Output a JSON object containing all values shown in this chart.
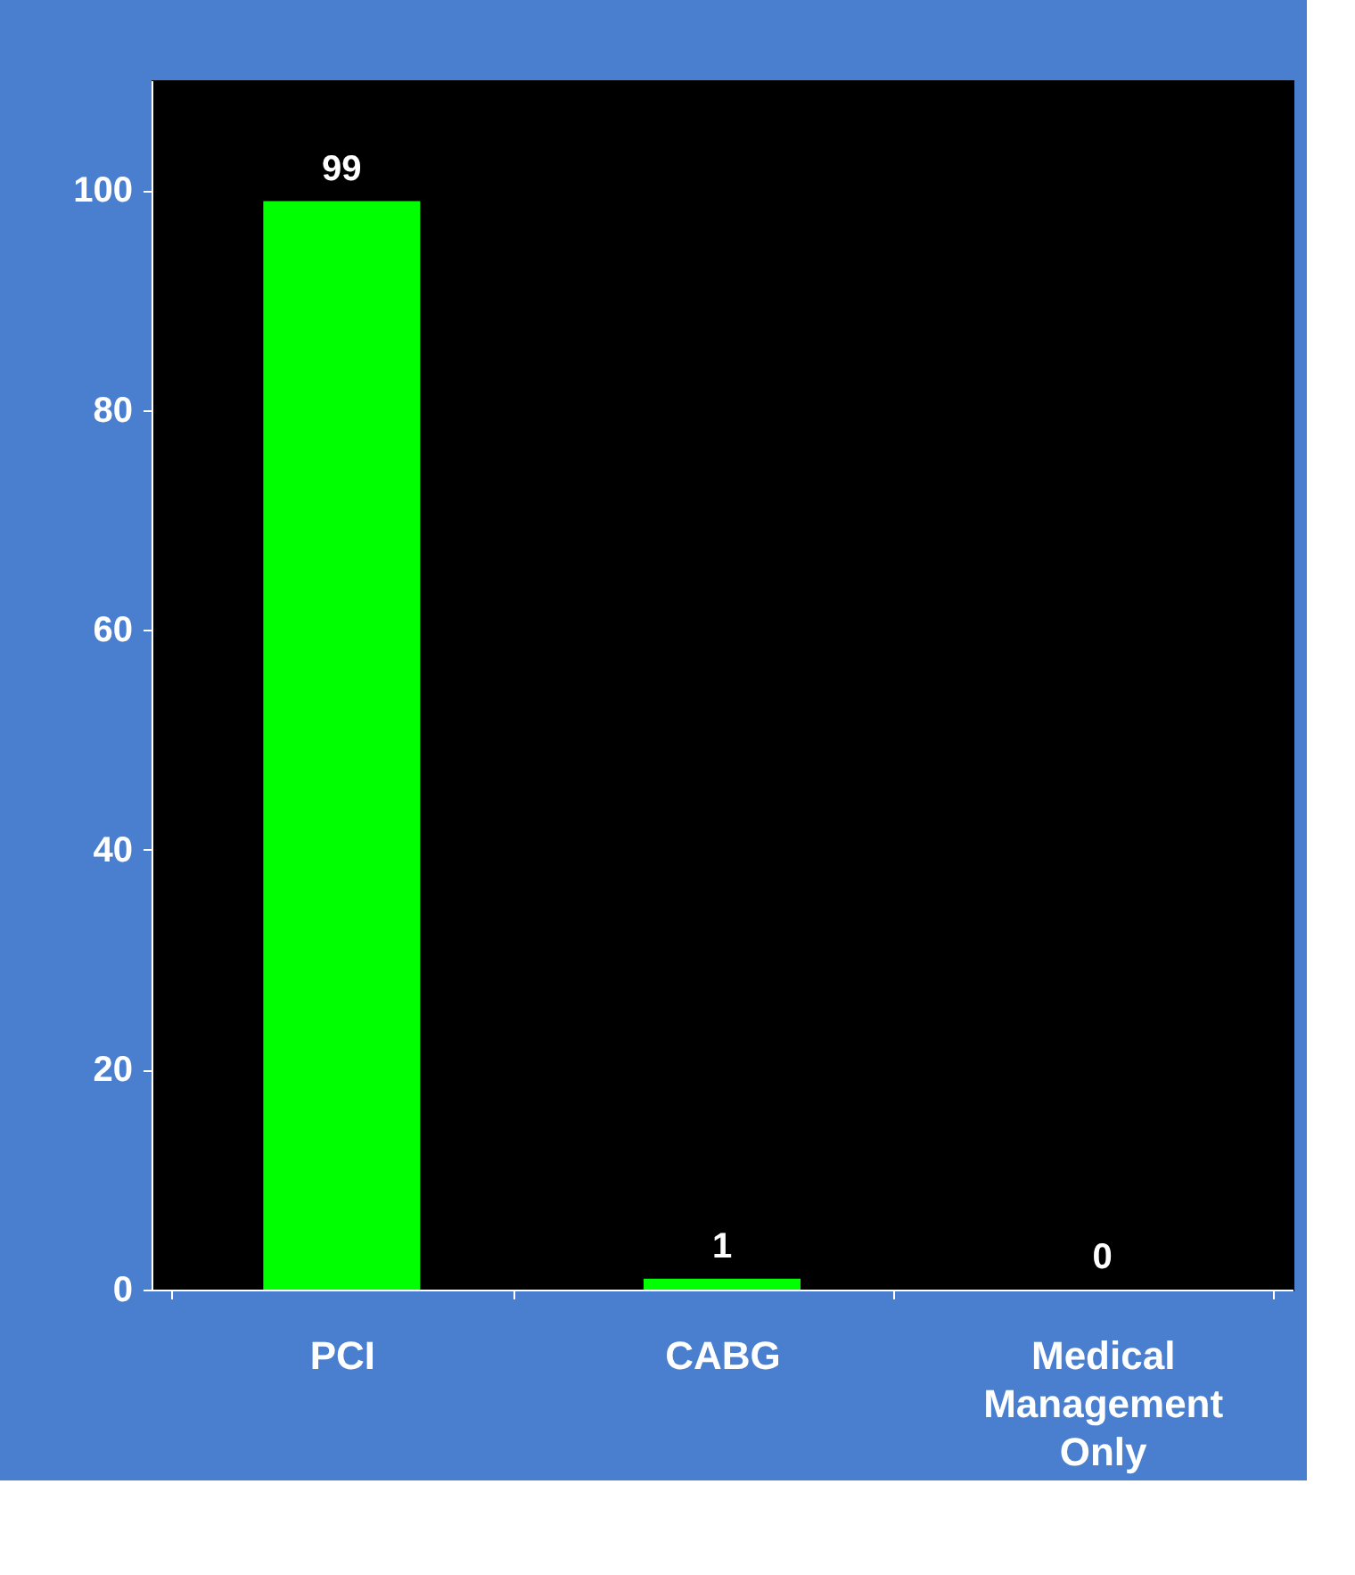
{
  "chart_data": {
    "type": "bar",
    "categories": [
      "PCI",
      "CABG",
      "Medical Management Only"
    ],
    "values": [
      99,
      1,
      0
    ],
    "color": "#00ff00",
    "ylim": [
      0,
      110
    ],
    "yticks": [
      0,
      20,
      40,
      60,
      80,
      100
    ],
    "grid": false,
    "data_labels": true
  }
}
